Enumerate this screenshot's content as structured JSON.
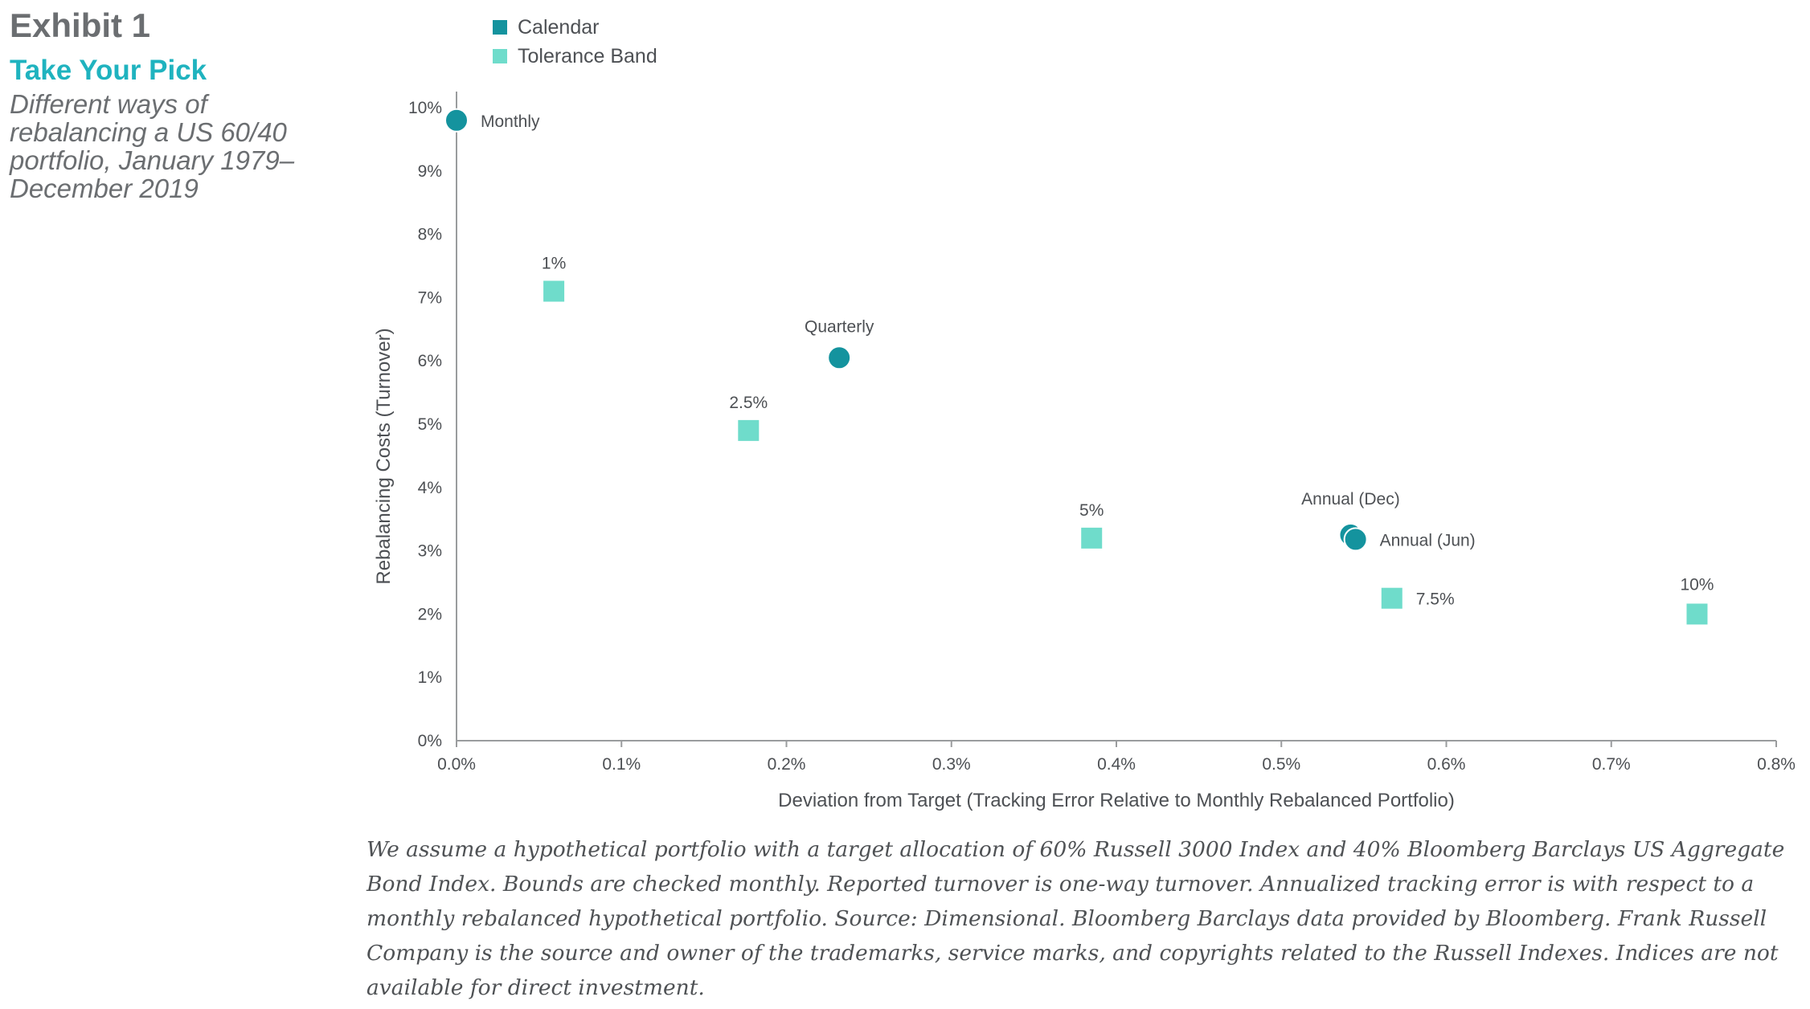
{
  "header": {
    "exhibit": "Exhibit 1",
    "title": "Take Your Pick",
    "subtitle": "Different ways of rebalancing a US 60/40 portfolio, January 1979–December 2019"
  },
  "footnote": "We assume a hypothetical portfolio with a target allocation of 60% Russell 3000 Index and 40% Bloomberg Barclays US Aggregate Bond Index. Bounds are checked monthly. Reported turnover is one-way turnover. Annualized tracking error is with respect to a monthly rebalanced hypothetical portfolio. Source: Dimensional. Bloomberg Barclays data provided by Bloomberg. Frank Russell Company is the source and owner of the trademarks, service marks, and copyrights related to the Russell Indexes. Indices are not available for direct investment.",
  "colors": {
    "calendar": "#14939e",
    "tolerance_band": "#6fdccb",
    "axis": "#9a9c9e",
    "text": "#4d5054"
  },
  "chart_data": {
    "type": "scatter",
    "xlabel": "Deviation from Target (Tracking Error Relative to Monthly Rebalanced Portfolio)",
    "ylabel": "Rebalancing Costs (Turnover)",
    "xlim": [
      0,
      0.8
    ],
    "ylim": [
      0,
      10
    ],
    "x_ticks": [
      "0.0%",
      "0.1%",
      "0.2%",
      "0.3%",
      "0.4%",
      "0.5%",
      "0.6%",
      "0.7%",
      "0.8%"
    ],
    "y_ticks": [
      "0%",
      "1%",
      "2%",
      "3%",
      "4%",
      "5%",
      "6%",
      "7%",
      "8%",
      "9%",
      "10%"
    ],
    "grid": false,
    "legend_position": "top-left",
    "series": [
      {
        "name": "Calendar",
        "marker": "circle",
        "points": [
          {
            "label": "Monthly",
            "x": 0.0,
            "y": 9.8
          },
          {
            "label": "Quarterly",
            "x": 0.232,
            "y": 6.05
          },
          {
            "label": "Annual (Dec)",
            "x": 0.542,
            "y": 3.25
          },
          {
            "label": "Annual (Jun)",
            "x": 0.545,
            "y": 3.18
          }
        ]
      },
      {
        "name": "Tolerance Band",
        "marker": "square",
        "points": [
          {
            "label": "1%",
            "x": 0.059,
            "y": 7.1
          },
          {
            "label": "2.5%",
            "x": 0.177,
            "y": 4.9
          },
          {
            "label": "5%",
            "x": 0.385,
            "y": 3.2
          },
          {
            "label": "7.5%",
            "x": 0.567,
            "y": 2.25
          },
          {
            "label": "10%",
            "x": 0.752,
            "y": 2.0
          }
        ]
      }
    ]
  }
}
